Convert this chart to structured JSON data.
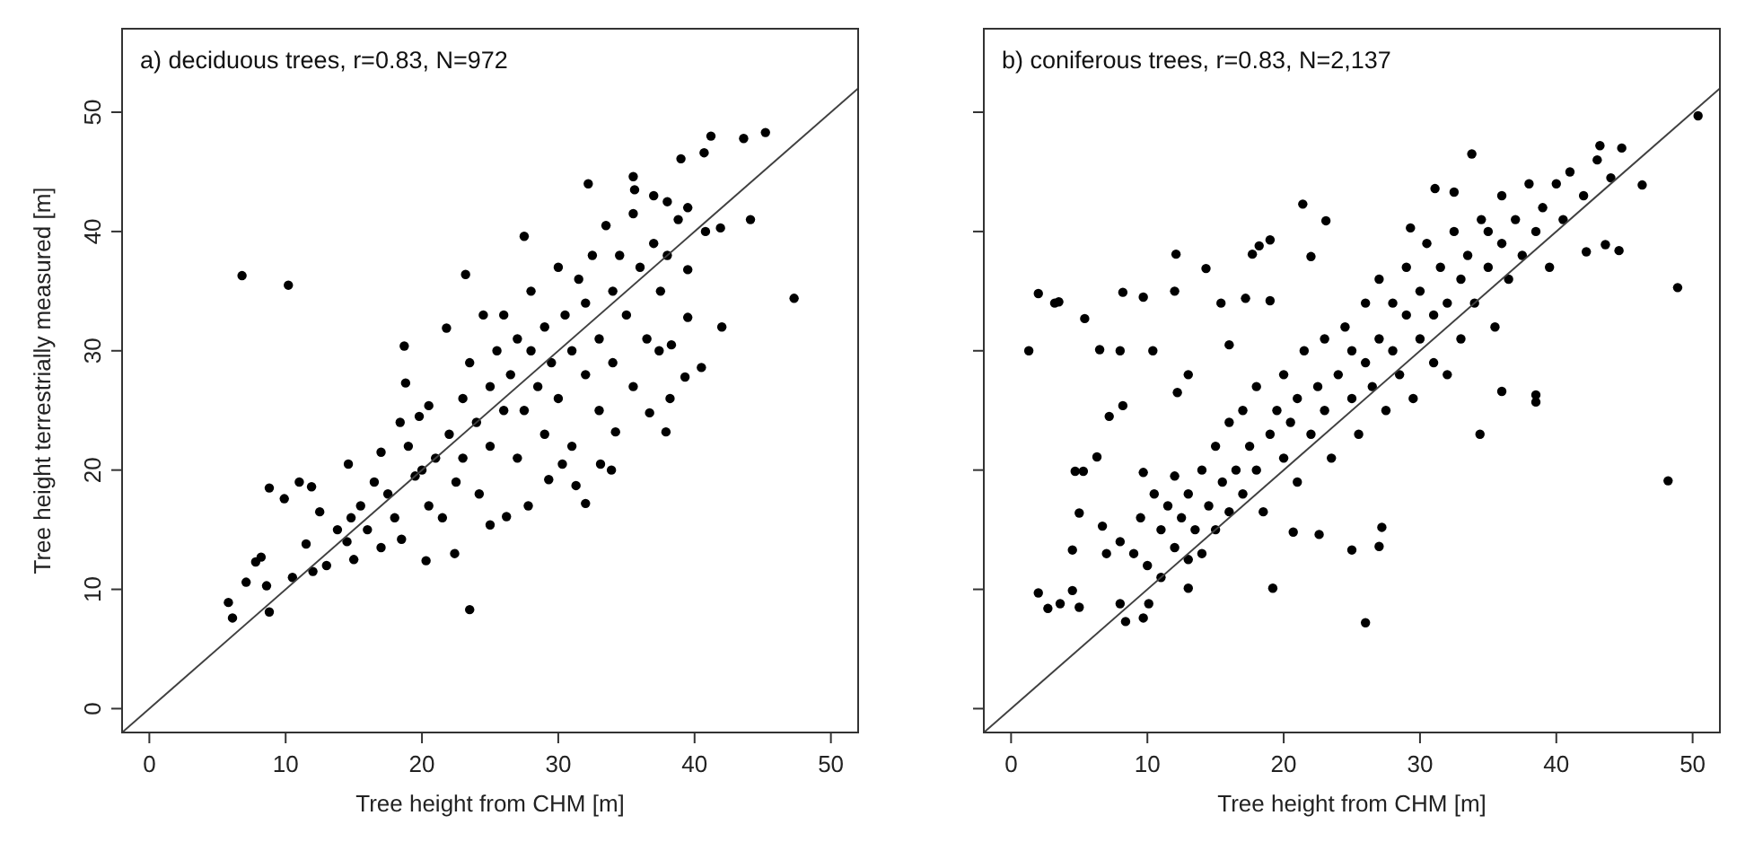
{
  "chart_data": [
    {
      "type": "scatter",
      "title": "a) deciduous trees, r=0.83, N=972",
      "xlabel": "Tree height from CHM [m]",
      "ylabel": "Tree height terrestrially measured [m]",
      "xlim": [
        -2,
        52
      ],
      "ylim": [
        -2,
        57
      ],
      "xticks": [
        0,
        10,
        20,
        30,
        40,
        50
      ],
      "yticks": [
        0,
        10,
        20,
        30,
        40,
        50
      ],
      "series": [
        {
          "marker": "circle",
          "color": "#000000",
          "x": [
            6.8,
            10.2,
            47.3,
            23.5,
            45.2,
            43.6,
            41.2,
            44.1,
            42,
            40.5,
            5.8,
            6.1,
            8.8,
            7.1,
            8.6,
            8.8,
            7.8,
            8.2,
            9.9,
            11,
            11.9,
            27.5,
            23.2,
            32.2,
            35.5,
            18.7,
            18.8,
            21.8,
            22.4,
            20.3,
            32,
            25,
            26.2,
            27.8,
            29.3,
            31.3,
            30.3,
            33.9,
            33.1,
            34.2,
            37.9,
            38.2,
            36.7,
            39.3,
            41.9,
            40.8,
            40.7,
            39,
            39.5,
            39.5,
            37.4,
            38.3,
            10.5,
            11.5,
            12,
            12.5,
            13,
            13.8,
            14.5,
            14.8,
            15,
            15.5,
            14.6,
            16,
            16.5,
            17,
            17,
            17.5,
            18,
            18.4,
            18.5,
            19,
            19.5,
            19.8,
            20,
            20.5,
            20.5,
            21,
            21.5,
            22,
            22.5,
            23,
            23,
            23.5,
            24,
            24.2,
            24.5,
            25,
            25,
            25.5,
            26,
            26,
            26.5,
            27,
            27,
            27.5,
            28,
            28,
            28.5,
            29,
            29,
            29.5,
            30,
            30,
            30.5,
            31,
            31,
            31.5,
            32,
            32,
            32.5,
            33,
            33,
            33.5,
            34,
            34,
            34.5,
            35,
            35.5,
            35.5,
            36,
            36.5,
            37,
            37,
            37.5,
            38,
            38,
            38.8,
            39.5,
            35.6
          ],
          "values": [
            36.3,
            35.5,
            34.4,
            8.3,
            48.3,
            47.8,
            48,
            41,
            32,
            28.6,
            8.9,
            7.6,
            8.1,
            10.6,
            10.3,
            18.5,
            12.3,
            12.7,
            17.6,
            19,
            18.6,
            39.6,
            36.4,
            44,
            44.6,
            30.4,
            27.3,
            31.9,
            13,
            12.4,
            17.2,
            15.4,
            16.1,
            17,
            19.2,
            18.7,
            20.5,
            20,
            20.5,
            23.2,
            23.2,
            26,
            24.8,
            27.8,
            40.3,
            40,
            46.6,
            46.1,
            32.8,
            36.8,
            30,
            30.5,
            11,
            13.8,
            11.5,
            16.5,
            12,
            15,
            14,
            16,
            12.5,
            17,
            20.5,
            15,
            19,
            13.5,
            21.5,
            18,
            16,
            24,
            14.2,
            22,
            19.5,
            24.5,
            20,
            17,
            25.4,
            21,
            16,
            23,
            19,
            26,
            21,
            29,
            24,
            18,
            33,
            27,
            22,
            30,
            25,
            33,
            28,
            21,
            31,
            25,
            30,
            35,
            27,
            23,
            32,
            29,
            37,
            26,
            33,
            30,
            22,
            36,
            34,
            28,
            38,
            31,
            25,
            40.5,
            35,
            29,
            38,
            33,
            27,
            41.5,
            37,
            31,
            39,
            43,
            35,
            38,
            42.5,
            41,
            42,
            43.5
          ]
        },
        {
          "type": "line",
          "color": "#404040",
          "x": [
            -2,
            52
          ],
          "values": [
            -2,
            52
          ]
        }
      ]
    },
    {
      "type": "scatter",
      "title": "b) coniferous trees, r=0.83, N=2,137",
      "xlabel": "Tree height from CHM [m]",
      "xlim": [
        -2,
        52
      ],
      "ylim": [
        -2,
        57
      ],
      "xticks": [
        0,
        10,
        20,
        30,
        40,
        50
      ],
      "yticks": [
        0,
        10,
        20,
        30,
        40,
        50
      ],
      "tick_labels": "x",
      "series": [
        {
          "marker": "circle",
          "color": "#000000",
          "x": [
            50.4,
            48.9,
            48.2,
            46.3,
            1.3,
            2,
            3.2,
            3.5,
            26,
            19.2,
            33.8,
            21.4,
            23.1,
            12.1,
            14.3,
            8.2,
            9.7,
            5.4,
            6.5,
            8,
            10.4,
            8.2,
            7.2,
            2,
            2.7,
            3.6,
            4.5,
            5,
            4.5,
            5,
            4.7,
            5.3,
            6.3,
            6.7,
            7,
            8,
            8.4,
            9.7,
            10.1,
            9.7,
            13,
            17.2,
            17.7,
            18.2,
            19,
            19,
            22,
            29.3,
            31.1,
            32.5,
            35,
            38.5,
            38.5,
            36,
            34.4,
            27,
            27.2,
            25,
            22.6,
            20.7,
            44.6,
            42.2,
            43.6,
            43.2,
            44.8,
            12,
            13,
            15.4,
            16,
            12.2,
            8,
            9,
            9.5,
            10,
            10.5,
            11,
            11,
            11.5,
            12,
            12,
            12.5,
            13,
            13,
            13.5,
            14,
            14,
            14.5,
            15,
            15,
            15.5,
            16,
            16,
            16.5,
            17,
            17,
            17.5,
            18,
            18,
            18.5,
            19,
            19.5,
            20,
            20,
            20.5,
            21,
            21,
            21.5,
            22,
            22.5,
            23,
            23,
            23.5,
            24,
            24.5,
            25,
            25,
            25.5,
            26,
            26,
            26.5,
            27,
            27,
            27.5,
            28,
            28,
            28.5,
            29,
            29,
            29.5,
            30,
            30,
            30.5,
            31,
            31,
            31.5,
            32,
            32,
            32.5,
            33,
            33,
            33.5,
            34,
            34.5,
            35,
            35.5,
            36,
            36,
            36.5,
            37,
            37.5,
            38,
            38.5,
            39,
            39.5,
            40,
            40.5,
            41,
            42,
            43,
            44
          ],
          "values": [
            49.7,
            35.3,
            19.1,
            43.9,
            30,
            34.8,
            34,
            34.1,
            7.2,
            10.1,
            46.5,
            42.3,
            40.9,
            38.1,
            36.9,
            34.9,
            34.5,
            32.7,
            30.1,
            30,
            30,
            25.4,
            24.5,
            9.7,
            8.4,
            8.8,
            9.9,
            8.5,
            13.3,
            16.4,
            19.9,
            19.9,
            21.1,
            15.3,
            13,
            8.8,
            7.3,
            7.6,
            8.8,
            19.8,
            10.1,
            34.4,
            38.1,
            38.8,
            39.3,
            34.2,
            37.9,
            40.3,
            43.6,
            43.3,
            40,
            25.7,
            26.3,
            26.6,
            23,
            13.6,
            15.2,
            13.3,
            14.6,
            14.8,
            38.4,
            38.3,
            38.9,
            47.2,
            47,
            35,
            28,
            34,
            30.5,
            26.5,
            14,
            13,
            16,
            12,
            18,
            15,
            11,
            17,
            13.5,
            19.5,
            16,
            12.5,
            18,
            15,
            20,
            13,
            17,
            15,
            22,
            19,
            16.5,
            24,
            20,
            18,
            25,
            22,
            20,
            27,
            16.5,
            23,
            25,
            21,
            28,
            24,
            26,
            19,
            30,
            23,
            27,
            25,
            31,
            21,
            28,
            32,
            26,
            30,
            23,
            29,
            34,
            27,
            31,
            36,
            25,
            30,
            34,
            28,
            33,
            37,
            26,
            31,
            35,
            39,
            29,
            33,
            37,
            34,
            28,
            40,
            36,
            31,
            38,
            34,
            41,
            37,
            32,
            39,
            43,
            36,
            41,
            38,
            44,
            40,
            42,
            37,
            44,
            41,
            45,
            43,
            46,
            44.5
          ]
        },
        {
          "type": "line",
          "color": "#404040",
          "x": [
            -2,
            52
          ],
          "values": [
            -2,
            52
          ]
        }
      ]
    }
  ]
}
